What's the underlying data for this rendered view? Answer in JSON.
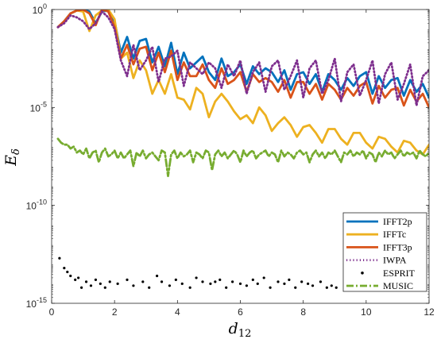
{
  "chart_data": {
    "type": "line",
    "title": "",
    "xlabel": "d",
    "xlabel_sub": "12",
    "ylabel": "E",
    "ylabel_sub": "δ",
    "xlim": [
      0,
      12
    ],
    "ylim_log10": [
      -15,
      0
    ],
    "yscale": "log",
    "grid": false,
    "legend_position": "bottom-right",
    "x_ticks": [
      0,
      2,
      4,
      6,
      8,
      10,
      12
    ],
    "y_ticks": [
      {
        "exp": 0,
        "base": "10",
        "sup": "0"
      },
      {
        "exp": -5,
        "base": "10",
        "sup": "-5"
      },
      {
        "exp": -10,
        "base": "10",
        "sup": "-10"
      },
      {
        "exp": -15,
        "base": "10",
        "sup": "-15"
      }
    ],
    "series": [
      {
        "name": "IFFT2p",
        "color": "#0072BD",
        "style": "solid",
        "x": [
          0.2,
          0.4,
          0.6,
          0.8,
          1.0,
          1.2,
          1.4,
          1.6,
          1.8,
          2.0,
          2.2,
          2.4,
          2.6,
          2.8,
          3.0,
          3.2,
          3.4,
          3.6,
          3.8,
          4.0,
          4.2,
          4.4,
          4.6,
          4.8,
          5.0,
          5.2,
          5.4,
          5.6,
          5.8,
          6.0,
          6.2,
          6.4,
          6.6,
          6.8,
          7.0,
          7.2,
          7.4,
          7.6,
          7.8,
          8.0,
          8.2,
          8.4,
          8.6,
          8.8,
          9.0,
          9.2,
          9.4,
          9.6,
          9.8,
          10.0,
          10.2,
          10.4,
          10.6,
          10.8,
          11.0,
          11.2,
          11.4,
          11.6,
          11.8,
          12.0
        ],
        "y_log10": [
          -0.9,
          -0.6,
          -0.2,
          -0.05,
          0,
          -0.1,
          -0.7,
          -0.1,
          -0.05,
          -0.6,
          -2.2,
          -1.4,
          -2.5,
          -1.6,
          -1.5,
          -2.7,
          -1.9,
          -2.9,
          -1.7,
          -3.3,
          -2.2,
          -3.0,
          -2.7,
          -2.4,
          -3.2,
          -3.6,
          -2.5,
          -3.4,
          -3.2,
          -2.8,
          -3.8,
          -2.9,
          -3.3,
          -3.0,
          -3.2,
          -3.7,
          -3.1,
          -4.1,
          -3.3,
          -3.2,
          -3.8,
          -3.3,
          -4.2,
          -3.3,
          -3.6,
          -4.1,
          -3.5,
          -3.9,
          -3.4,
          -3.2,
          -4.3,
          -3.4,
          -4.0,
          -3.6,
          -3.5,
          -4.4,
          -3.6,
          -4.2,
          -3.8,
          -4.5
        ]
      },
      {
        "name": "IFFTc",
        "color": "#EDB120",
        "style": "solid",
        "x": [
          0.2,
          0.4,
          0.6,
          0.8,
          1.0,
          1.2,
          1.4,
          1.6,
          1.8,
          2.0,
          2.2,
          2.4,
          2.6,
          2.8,
          3.0,
          3.2,
          3.4,
          3.6,
          3.8,
          4.0,
          4.2,
          4.4,
          4.6,
          4.8,
          5.0,
          5.2,
          5.4,
          5.6,
          5.8,
          6.0,
          6.2,
          6.4,
          6.6,
          6.8,
          7.0,
          7.2,
          7.4,
          7.6,
          7.8,
          8.0,
          8.2,
          8.4,
          8.6,
          8.8,
          9.0,
          9.2,
          9.4,
          9.6,
          9.8,
          10.0,
          10.2,
          10.4,
          10.6,
          10.8,
          11.0,
          11.2,
          11.4,
          11.6,
          11.8,
          12.0
        ],
        "y_log10": [
          -0.9,
          -0.6,
          -0.2,
          -0.05,
          -0.1,
          -1.1,
          -0.3,
          -0.05,
          0,
          -0.5,
          -2.5,
          -2.2,
          -3.5,
          -2.6,
          -3.1,
          -4.3,
          -3.6,
          -4.3,
          -3.3,
          -4.5,
          -4.6,
          -5.1,
          -4.0,
          -4.3,
          -5.5,
          -4.7,
          -4.3,
          -4.7,
          -5.2,
          -5.6,
          -5.4,
          -5.8,
          -5.0,
          -5.4,
          -6.2,
          -5.8,
          -5.5,
          -5.9,
          -6.5,
          -6.0,
          -5.9,
          -6.3,
          -6.8,
          -6.1,
          -6.1,
          -6.6,
          -6.9,
          -6.3,
          -6.3,
          -6.8,
          -7.1,
          -6.5,
          -6.6,
          -7.0,
          -7.3,
          -6.7,
          -6.8,
          -7.2,
          -7.4,
          -6.9
        ]
      },
      {
        "name": "IFFT3p",
        "color": "#D95319",
        "style": "solid",
        "x": [
          0.2,
          0.4,
          0.6,
          0.8,
          1.0,
          1.2,
          1.4,
          1.6,
          1.8,
          2.0,
          2.2,
          2.4,
          2.6,
          2.8,
          3.0,
          3.2,
          3.4,
          3.6,
          3.8,
          4.0,
          4.2,
          4.4,
          4.6,
          4.8,
          5.0,
          5.2,
          5.4,
          5.6,
          5.8,
          6.0,
          6.2,
          6.4,
          6.6,
          6.8,
          7.0,
          7.2,
          7.4,
          7.6,
          7.8,
          8.0,
          8.2,
          8.4,
          8.6,
          8.8,
          9.0,
          9.2,
          9.4,
          9.6,
          9.8,
          10.0,
          10.2,
          10.4,
          10.6,
          10.8,
          11.0,
          11.2,
          11.4,
          11.6,
          11.8,
          12.0
        ],
        "y_log10": [
          -0.9,
          -0.6,
          -0.2,
          -0.05,
          0,
          -0.2,
          -0.8,
          0,
          -0.1,
          -0.9,
          -2.5,
          -1.8,
          -2.8,
          -2.0,
          -1.9,
          -3.1,
          -2.2,
          -3.2,
          -2.1,
          -3.6,
          -2.7,
          -3.4,
          -3.4,
          -2.8,
          -3.6,
          -4.0,
          -3.0,
          -3.8,
          -3.6,
          -3.2,
          -4.2,
          -3.3,
          -3.7,
          -3.5,
          -3.7,
          -4.2,
          -3.6,
          -4.5,
          -3.7,
          -3.7,
          -4.3,
          -3.8,
          -4.6,
          -3.8,
          -4.1,
          -4.6,
          -4.0,
          -4.4,
          -3.9,
          -3.7,
          -4.8,
          -3.9,
          -4.5,
          -4.1,
          -4.0,
          -4.9,
          -4.1,
          -4.7,
          -4.3,
          -5.0
        ]
      },
      {
        "name": "IWPA",
        "color": "#7E2F8E",
        "style": "dotted",
        "x": [
          0.2,
          0.4,
          0.6,
          0.8,
          1.0,
          1.2,
          1.4,
          1.6,
          1.8,
          2.0,
          2.2,
          2.4,
          2.6,
          2.8,
          3.0,
          3.2,
          3.4,
          3.6,
          3.8,
          4.0,
          4.2,
          4.4,
          4.6,
          4.8,
          5.0,
          5.2,
          5.4,
          5.6,
          5.8,
          6.0,
          6.2,
          6.4,
          6.6,
          6.8,
          7.0,
          7.2,
          7.4,
          7.6,
          7.8,
          8.0,
          8.2,
          8.4,
          8.6,
          8.8,
          9.0,
          9.2,
          9.4,
          9.6,
          9.8,
          10.0,
          10.2,
          10.4,
          10.6,
          10.8,
          11.0,
          11.2,
          11.4,
          11.6,
          11.8,
          12.0
        ],
        "y_log10": [
          -0.9,
          -0.7,
          -0.3,
          -0.4,
          -0.6,
          -1.0,
          -0.7,
          -0.1,
          -0.4,
          -1.0,
          -2.6,
          -3.4,
          -1.8,
          -3.1,
          -2.6,
          -1.9,
          -3.7,
          -2.5,
          -2.4,
          -2.1,
          -3.9,
          -2.7,
          -3.0,
          -3.3,
          -2.7,
          -3.0,
          -4.0,
          -2.8,
          -3.4,
          -2.6,
          -4.3,
          -3.2,
          -2.7,
          -4.2,
          -2.9,
          -2.6,
          -4.1,
          -3.4,
          -2.6,
          -4.5,
          -3.0,
          -2.6,
          -4.3,
          -3.6,
          -2.5,
          -4.7,
          -3.2,
          -2.8,
          -4.4,
          -3.6,
          -2.6,
          -4.8,
          -3.3,
          -2.7,
          -4.6,
          -3.8,
          -2.8,
          -4.9,
          -3.4,
          -3.1
        ]
      },
      {
        "name": "ESPRIT",
        "color": "#000000",
        "style": "points",
        "x": [
          0.25,
          0.4,
          0.5,
          0.6,
          0.75,
          0.85,
          0.95,
          1.1,
          1.25,
          1.4,
          1.55,
          1.7,
          1.85,
          2.1,
          2.4,
          2.6,
          2.9,
          3.1,
          3.35,
          3.5,
          3.75,
          3.95,
          4.15,
          4.4,
          4.6,
          4.8,
          5.05,
          5.2,
          5.35,
          5.55,
          5.75,
          6.0,
          6.2,
          6.4,
          6.55,
          6.75,
          6.95,
          7.2,
          7.4,
          7.55,
          7.75,
          7.95,
          8.15,
          8.3,
          8.55,
          8.75,
          8.9,
          9.05
        ],
        "y_log10": [
          -12.7,
          -13.2,
          -13.4,
          -13.6,
          -13.8,
          -13.7,
          -14.2,
          -13.9,
          -14.1,
          -13.8,
          -14.0,
          -14.2,
          -13.9,
          -14.0,
          -13.8,
          -14.1,
          -13.9,
          -14.2,
          -13.6,
          -13.9,
          -14.1,
          -13.8,
          -14.0,
          -14.2,
          -13.7,
          -13.9,
          -14.0,
          -13.9,
          -13.8,
          -14.2,
          -13.9,
          -14.0,
          -14.1,
          -13.8,
          -14.0,
          -13.7,
          -14.2,
          -13.9,
          -14.0,
          -13.8,
          -14.2,
          -13.9,
          -14.0,
          -14.1,
          -13.9,
          -14.2,
          -14.1,
          -14.2
        ]
      },
      {
        "name": "MUSIC",
        "color": "#77AC30",
        "style": "dashdot",
        "x": [
          0.2,
          0.3,
          0.4,
          0.5,
          0.6,
          0.7,
          0.8,
          0.9,
          1.0,
          1.1,
          1.2,
          1.3,
          1.4,
          1.5,
          1.6,
          1.7,
          1.8,
          1.9,
          2.0,
          2.1,
          2.2,
          2.3,
          2.4,
          2.5,
          2.6,
          2.7,
          2.8,
          2.9,
          3.0,
          3.1,
          3.2,
          3.3,
          3.4,
          3.5,
          3.6,
          3.7,
          3.8,
          3.9,
          4.0,
          4.1,
          4.2,
          4.3,
          4.4,
          4.5,
          4.6,
          4.7,
          4.8,
          4.9,
          5.0,
          5.1,
          5.2,
          5.3,
          5.4,
          5.5,
          5.6,
          5.7,
          5.8,
          5.9,
          6.0,
          6.1,
          6.2,
          6.3,
          6.4,
          6.5,
          6.6,
          6.7,
          6.8,
          6.9,
          7.0,
          7.1,
          7.2,
          7.3,
          7.4,
          7.5,
          7.6,
          7.7,
          7.8,
          7.9,
          8.0,
          8.1,
          8.2,
          8.3,
          8.4,
          8.5,
          8.6,
          8.7,
          8.8,
          8.9,
          9.0,
          9.1,
          9.2,
          9.3,
          9.4,
          9.5,
          9.6,
          9.7,
          9.8,
          9.9,
          10.0,
          10.1,
          10.2,
          10.3,
          10.4,
          10.5,
          10.6,
          10.7,
          10.8,
          10.9,
          11.0,
          11.1,
          11.2,
          11.3,
          11.4,
          11.5,
          11.6,
          11.7,
          11.8,
          11.9,
          12.0
        ],
        "y_log10": [
          -6.6,
          -6.8,
          -6.9,
          -6.9,
          -7.1,
          -7.0,
          -7.3,
          -7.2,
          -7.4,
          -7.1,
          -7.6,
          -7.3,
          -7.2,
          -7.8,
          -7.3,
          -7.1,
          -7.5,
          -7.4,
          -7.2,
          -7.6,
          -7.3,
          -7.6,
          -7.4,
          -7.2,
          -8.0,
          -7.3,
          -7.5,
          -7.2,
          -7.6,
          -7.4,
          -7.3,
          -7.5,
          -7.7,
          -7.2,
          -7.3,
          -8.5,
          -7.4,
          -7.2,
          -7.6,
          -7.3,
          -7.5,
          -7.4,
          -7.2,
          -7.8,
          -7.3,
          -7.4,
          -7.6,
          -7.2,
          -7.3,
          -8.2,
          -7.4,
          -7.2,
          -7.5,
          -7.3,
          -7.6,
          -7.4,
          -7.2,
          -7.4,
          -7.8,
          -7.2,
          -7.5,
          -7.3,
          -7.2,
          -7.6,
          -7.4,
          -7.3,
          -7.2,
          -7.5,
          -7.3,
          -7.4,
          -7.8,
          -7.2,
          -7.5,
          -7.3,
          -7.4,
          -7.6,
          -7.3,
          -7.2,
          -7.4,
          -7.3,
          -7.8,
          -7.4,
          -7.2,
          -7.5,
          -7.3,
          -7.6,
          -7.3,
          -7.4,
          -7.2,
          -7.5,
          -7.8,
          -7.3,
          -7.4,
          -7.2,
          -7.5,
          -7.3,
          -7.4,
          -7.2,
          -7.6,
          -7.3,
          -7.4,
          -7.8,
          -7.3,
          -7.5,
          -7.2,
          -7.4,
          -7.3,
          -7.6,
          -7.4,
          -7.2,
          -7.5,
          -7.3,
          -7.4,
          -7.3,
          -7.6,
          -7.2,
          -7.4,
          -7.5,
          -7.3
        ]
      }
    ]
  }
}
